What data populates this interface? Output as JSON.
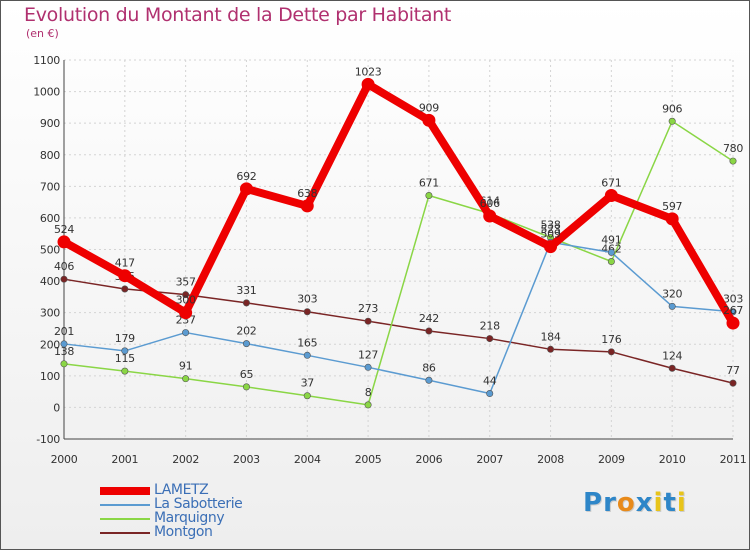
{
  "header": {
    "title": "Evolution du Montant de la Dette par Habitant",
    "unit": "(en €)"
  },
  "brand": {
    "name": "Proxiti",
    "letters": [
      "P",
      "r",
      "o",
      "x",
      "i",
      "t",
      "i"
    ],
    "letter_colors": [
      "#2e86c8",
      "#2e86c8",
      "#e88a1a",
      "#2e86c8",
      "#e8c41a",
      "#2e86c8",
      "#e8c41a"
    ]
  },
  "chart_data": {
    "type": "line",
    "title": "Evolution du Montant de la Dette par Habitant",
    "ylabel": "(en €)",
    "xlabel": "",
    "categories": [
      "2000",
      "2001",
      "2002",
      "2003",
      "2004",
      "2005",
      "2006",
      "2007",
      "2008",
      "2009",
      "2010",
      "2011"
    ],
    "ylim": [
      -100,
      1100
    ],
    "yticks": [
      "-100",
      "0",
      "100",
      "200",
      "300",
      "400",
      "500",
      "600",
      "700",
      "800",
      "900",
      "1000",
      "1100"
    ],
    "grid": true,
    "legend": "bottom-left",
    "series": [
      {
        "name": "Montgon",
        "key": "montgon",
        "values": [
          406,
          375,
          357,
          331,
          303,
          273,
          242,
          218,
          184,
          176,
          124,
          77
        ],
        "labels": [
          "406",
          "375",
          "357",
          "331",
          "303",
          "273",
          "242",
          "218",
          "184",
          "176",
          "124",
          "77"
        ],
        "color": "#7a2525"
      },
      {
        "name": "Marquigny",
        "key": "marquigny",
        "values": [
          138,
          115,
          91,
          65,
          37,
          8,
          671,
          614,
          538,
          462,
          906,
          780
        ],
        "labels": [
          "138",
          "115",
          "91",
          "65",
          "37",
          "8",
          "671",
          "614",
          "538",
          "462",
          "906",
          "780"
        ],
        "segments": [
          [
            0,
            5
          ],
          [
            5,
            11
          ]
        ],
        "color": "#8ad645"
      },
      {
        "name": "La Sabotterie",
        "key": "la-sabotterie",
        "values": [
          201,
          179,
          237,
          202,
          165,
          127,
          86,
          44,
          523,
          491,
          320,
          303
        ],
        "labels": [
          "201",
          "179",
          "237",
          "202",
          "165",
          "127",
          "86",
          "44",
          "523",
          "491",
          "320",
          "303"
        ],
        "color": "#5b9bd1"
      },
      {
        "name": "LAMETZ",
        "key": "lametz",
        "values": [
          524,
          417,
          300,
          692,
          638,
          1023,
          909,
          606,
          509,
          671,
          597,
          267
        ],
        "labels": [
          "524",
          "417",
          "300",
          "692",
          "638",
          "1023",
          "909",
          "606",
          "509",
          "671",
          "597",
          "267"
        ],
        "color": "#ee0000"
      }
    ]
  },
  "legend": {
    "items": [
      {
        "label": "LAMETZ",
        "color": "#ee0000"
      },
      {
        "label": "La Sabotterie",
        "color": "#5b9bd1"
      },
      {
        "label": "Marquigny",
        "color": "#8ad645"
      },
      {
        "label": "Montgon",
        "color": "#7a2525"
      }
    ]
  }
}
